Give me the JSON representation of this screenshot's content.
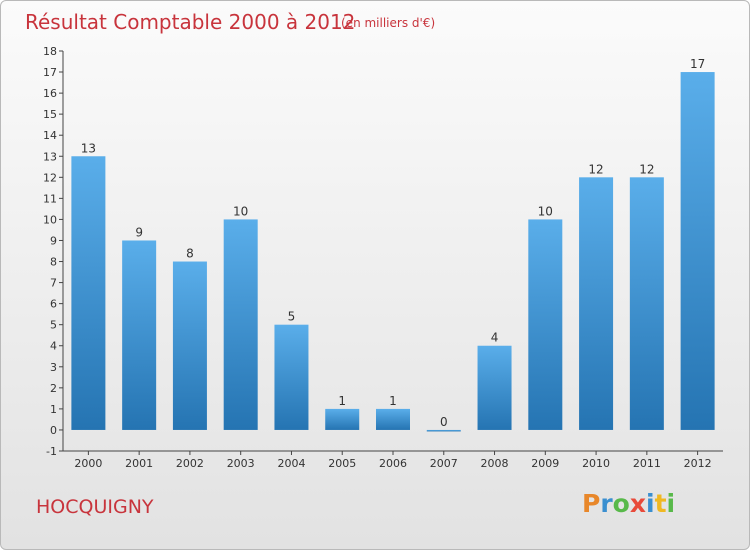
{
  "header": {
    "title": "Résultat Comptable 2000 à 2012",
    "subtitle": "(en milliers d'€)"
  },
  "footer": {
    "place": "HOCQUIGNY",
    "logo_text": "Proxiti"
  },
  "colors": {
    "title": "#c8343c",
    "bar_top": "#5aaeea",
    "bar_bottom": "#2574b2",
    "logo": [
      "#e8872a",
      "#3a8fd0",
      "#58b94a",
      "#e84a3a",
      "#3a8fd0",
      "#f0b822",
      "#58b94a"
    ]
  },
  "chart_data": {
    "type": "bar",
    "categories": [
      "2000",
      "2001",
      "2002",
      "2003",
      "2004",
      "2005",
      "2006",
      "2007",
      "2008",
      "2009",
      "2010",
      "2011",
      "2012"
    ],
    "values": [
      13,
      9,
      8,
      10,
      5,
      1,
      1,
      0,
      4,
      10,
      12,
      12,
      17
    ],
    "title": "Résultat Comptable 2000 à 2012",
    "subtitle": "(en milliers d'€)",
    "ylim": [
      -1,
      18
    ],
    "yticks": [
      -1,
      0,
      1,
      2,
      3,
      4,
      5,
      6,
      7,
      8,
      9,
      10,
      11,
      12,
      13,
      14,
      15,
      16,
      17,
      18
    ],
    "grid": false,
    "data_labels": true
  }
}
